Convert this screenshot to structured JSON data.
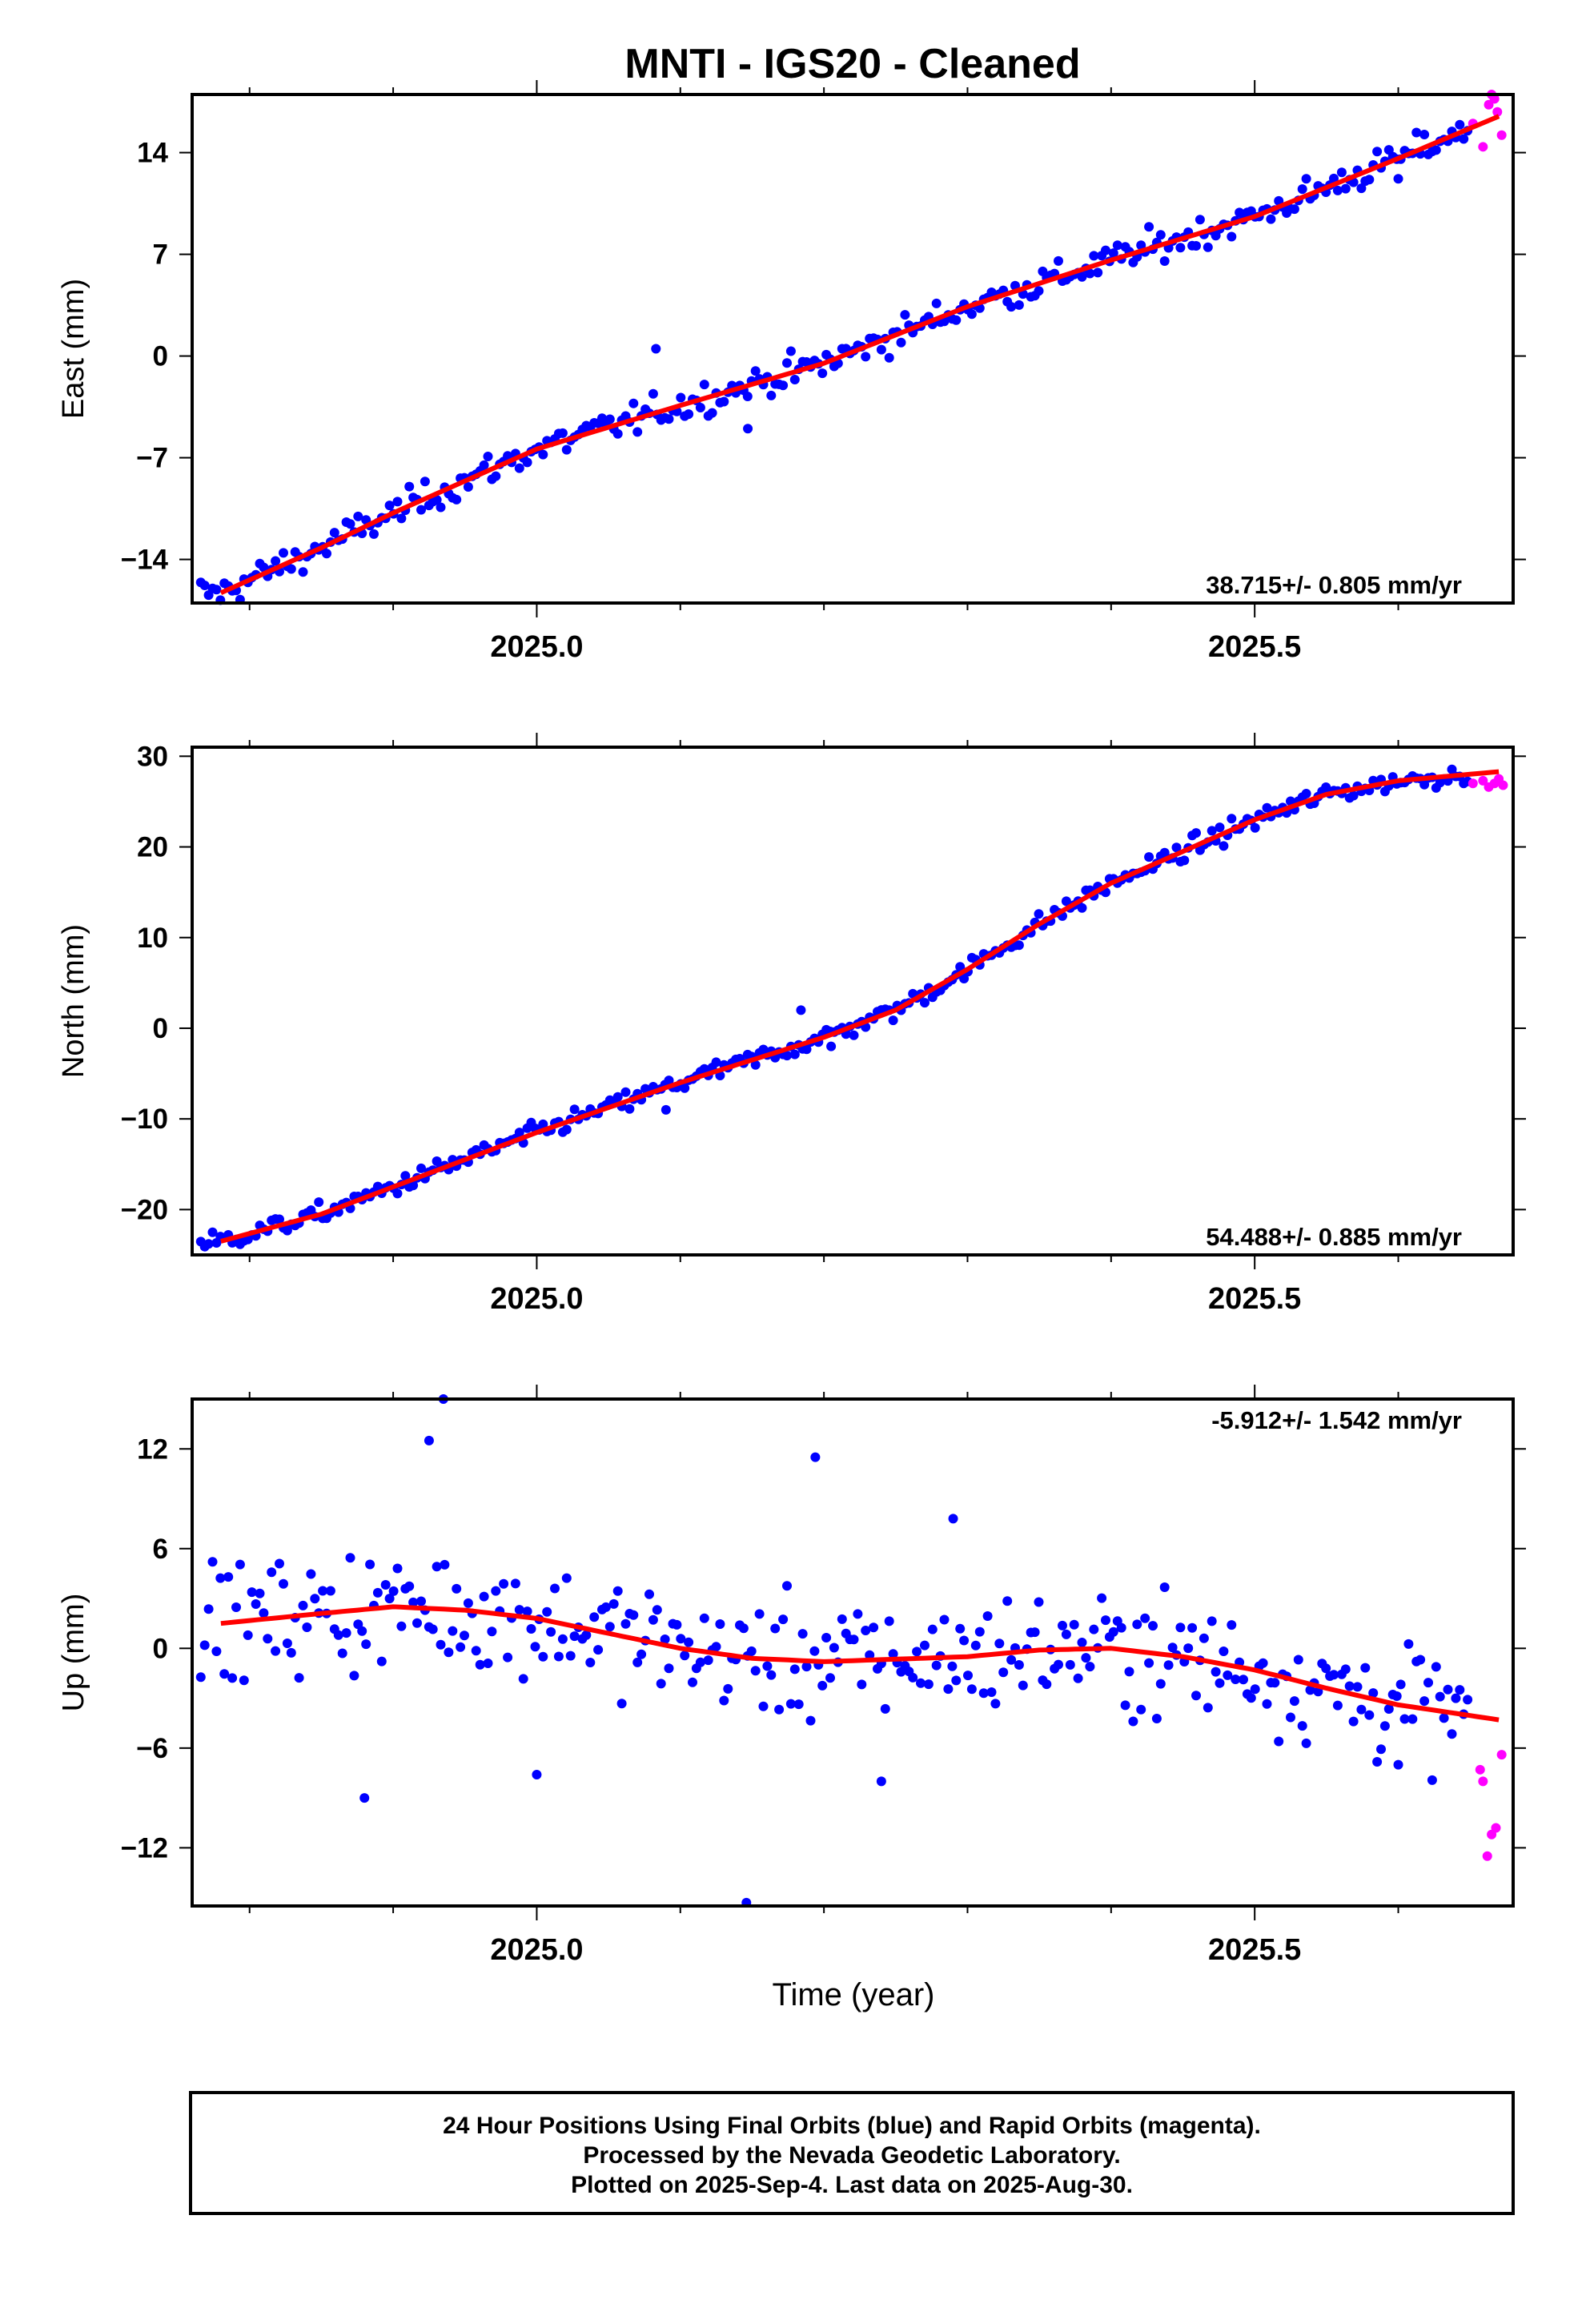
{
  "chart_data": {
    "title": "MNTI  - IGS20 - Cleaned",
    "xlabel": "Time (year)",
    "xlim": [
      2024.76,
      2025.68
    ],
    "x_ticks": [
      2025.0,
      2025.5
    ],
    "x_tick_labels": [
      "2025.0",
      "2025.5"
    ],
    "x_minor_ticks": [
      2024.8,
      2024.9,
      2025.1,
      2025.2,
      2025.3,
      2025.4,
      2025.6
    ],
    "legend_colors": {
      "final": "#0000ff",
      "rapid": "#ff00ff",
      "fit": "#ff0000"
    },
    "panels": [
      {
        "type": "scatter",
        "ylabel": "East (mm)",
        "ylim": [
          -17,
          18
        ],
        "y_ticks": [
          -14,
          -7,
          0,
          7,
          14
        ],
        "y_tick_labels": [
          "−14",
          "−7",
          "0",
          "7",
          "14"
        ],
        "rate": "38.715+/- 0.805 mm/yr",
        "rate_position": "bottom-right",
        "fit_x": [
          2024.78,
          2024.85,
          2024.9,
          2024.95,
          2025.0,
          2025.1,
          2025.2,
          2025.3,
          2025.4,
          2025.5,
          2025.55,
          2025.6,
          2025.67
        ],
        "fit_y": [
          -16.3,
          -13.2,
          -10.8,
          -8.6,
          -6.4,
          -3.4,
          -0.5,
          3.4,
          6.6,
          9.6,
          11.6,
          13.6,
          16.5
        ],
        "series": [
          {
            "name": "Final Orbits (blue)",
            "color": "#0000ff",
            "noise": 1.1,
            "outliers": [
              [
                2025.083,
                0.5
              ],
              [
                2025.147,
                -5.0
              ],
              [
                2025.6,
                12.2
              ]
            ]
          },
          {
            "name": "Rapid Orbits (magenta)",
            "color": "#ff00ff",
            "x": [
              2025.652,
              2025.659,
              2025.663,
              2025.665,
              2025.667,
              2025.669,
              2025.672
            ],
            "y": [
              16.0,
              14.4,
              17.3,
              18.0,
              17.7,
              16.8,
              15.2
            ]
          }
        ]
      },
      {
        "type": "scatter",
        "ylabel": "North (mm)",
        "ylim": [
          -25,
          31
        ],
        "y_ticks": [
          -20,
          -10,
          0,
          10,
          20,
          30
        ],
        "y_tick_labels": [
          "−20",
          "−10",
          "0",
          "10",
          "20",
          "30"
        ],
        "rate": "54.488+/- 0.885 mm/yr",
        "rate_position": "bottom-right",
        "fit_x": [
          2024.78,
          2024.85,
          2024.9,
          2025.0,
          2025.1,
          2025.2,
          2025.25,
          2025.3,
          2025.35,
          2025.4,
          2025.5,
          2025.55,
          2025.6,
          2025.67
        ],
        "fit_y": [
          -23.5,
          -20.5,
          -17.5,
          -11.5,
          -6.0,
          -1.0,
          2.0,
          6.5,
          11.5,
          16.0,
          23.0,
          25.8,
          27.3,
          28.3
        ],
        "series": [
          {
            "name": "Final Orbits (blue)",
            "color": "#0000ff",
            "noise": 1.1,
            "outliers": [
              [
                2025.09,
                -9.0
              ],
              [
                2025.184,
                2.0
              ],
              [
                2025.205,
                -2.0
              ]
            ]
          },
          {
            "name": "Rapid Orbits (magenta)",
            "color": "#ff00ff",
            "x": [
              2025.652,
              2025.659,
              2025.663,
              2025.667,
              2025.67,
              2025.673
            ],
            "y": [
              27.0,
              27.3,
              26.6,
              27.0,
              27.5,
              26.8
            ]
          }
        ]
      },
      {
        "type": "scatter",
        "ylabel": "Up (mm)",
        "ylim": [
          -15.5,
          15
        ],
        "y_ticks": [
          -12,
          -6,
          0,
          6,
          12
        ],
        "y_tick_labels": [
          "−12",
          "−6",
          "0",
          "6",
          "12"
        ],
        "rate": "-5.912+/- 1.542 mm/yr",
        "rate_position": "top-right",
        "fit_x": [
          2024.78,
          2024.85,
          2024.9,
          2024.95,
          2025.0,
          2025.05,
          2025.1,
          2025.15,
          2025.2,
          2025.3,
          2025.35,
          2025.4,
          2025.45,
          2025.5,
          2025.55,
          2025.6,
          2025.67
        ],
        "fit_y": [
          1.5,
          2.1,
          2.5,
          2.3,
          1.8,
          0.9,
          0.0,
          -0.6,
          -0.8,
          -0.5,
          -0.1,
          0.0,
          -0.5,
          -1.3,
          -2.4,
          -3.4,
          -4.3
        ],
        "series": [
          {
            "name": "Final Orbits (blue)",
            "color": "#0000ff",
            "noise": 3.5,
            "outliers": [
              [
                2024.935,
                15.0
              ],
              [
                2024.925,
                12.5
              ],
              [
                2025.146,
                -15.3
              ],
              [
                2025.194,
                11.5
              ],
              [
                2024.88,
                -9.0
              ],
              [
                2025.0,
                -7.6
              ],
              [
                2025.29,
                7.8
              ],
              [
                2025.24,
                -8.0
              ],
              [
                2025.6,
                -7.0
              ]
            ]
          },
          {
            "name": "Rapid Orbits (magenta)",
            "color": "#ff00ff",
            "x": [
              2025.657,
              2025.659,
              2025.662,
              2025.665,
              2025.668,
              2025.672
            ],
            "y": [
              -7.3,
              -8.0,
              -12.5,
              -11.2,
              -10.8,
              -6.4
            ]
          }
        ]
      }
    ]
  },
  "footer": {
    "line1": "24 Hour Positions Using Final Orbits (blue) and Rapid Orbits (magenta).",
    "line2": "Processed by the Nevada Geodetic Laboratory.",
    "line3": "Plotted on 2025-Sep-4. Last data on 2025-Aug-30."
  }
}
